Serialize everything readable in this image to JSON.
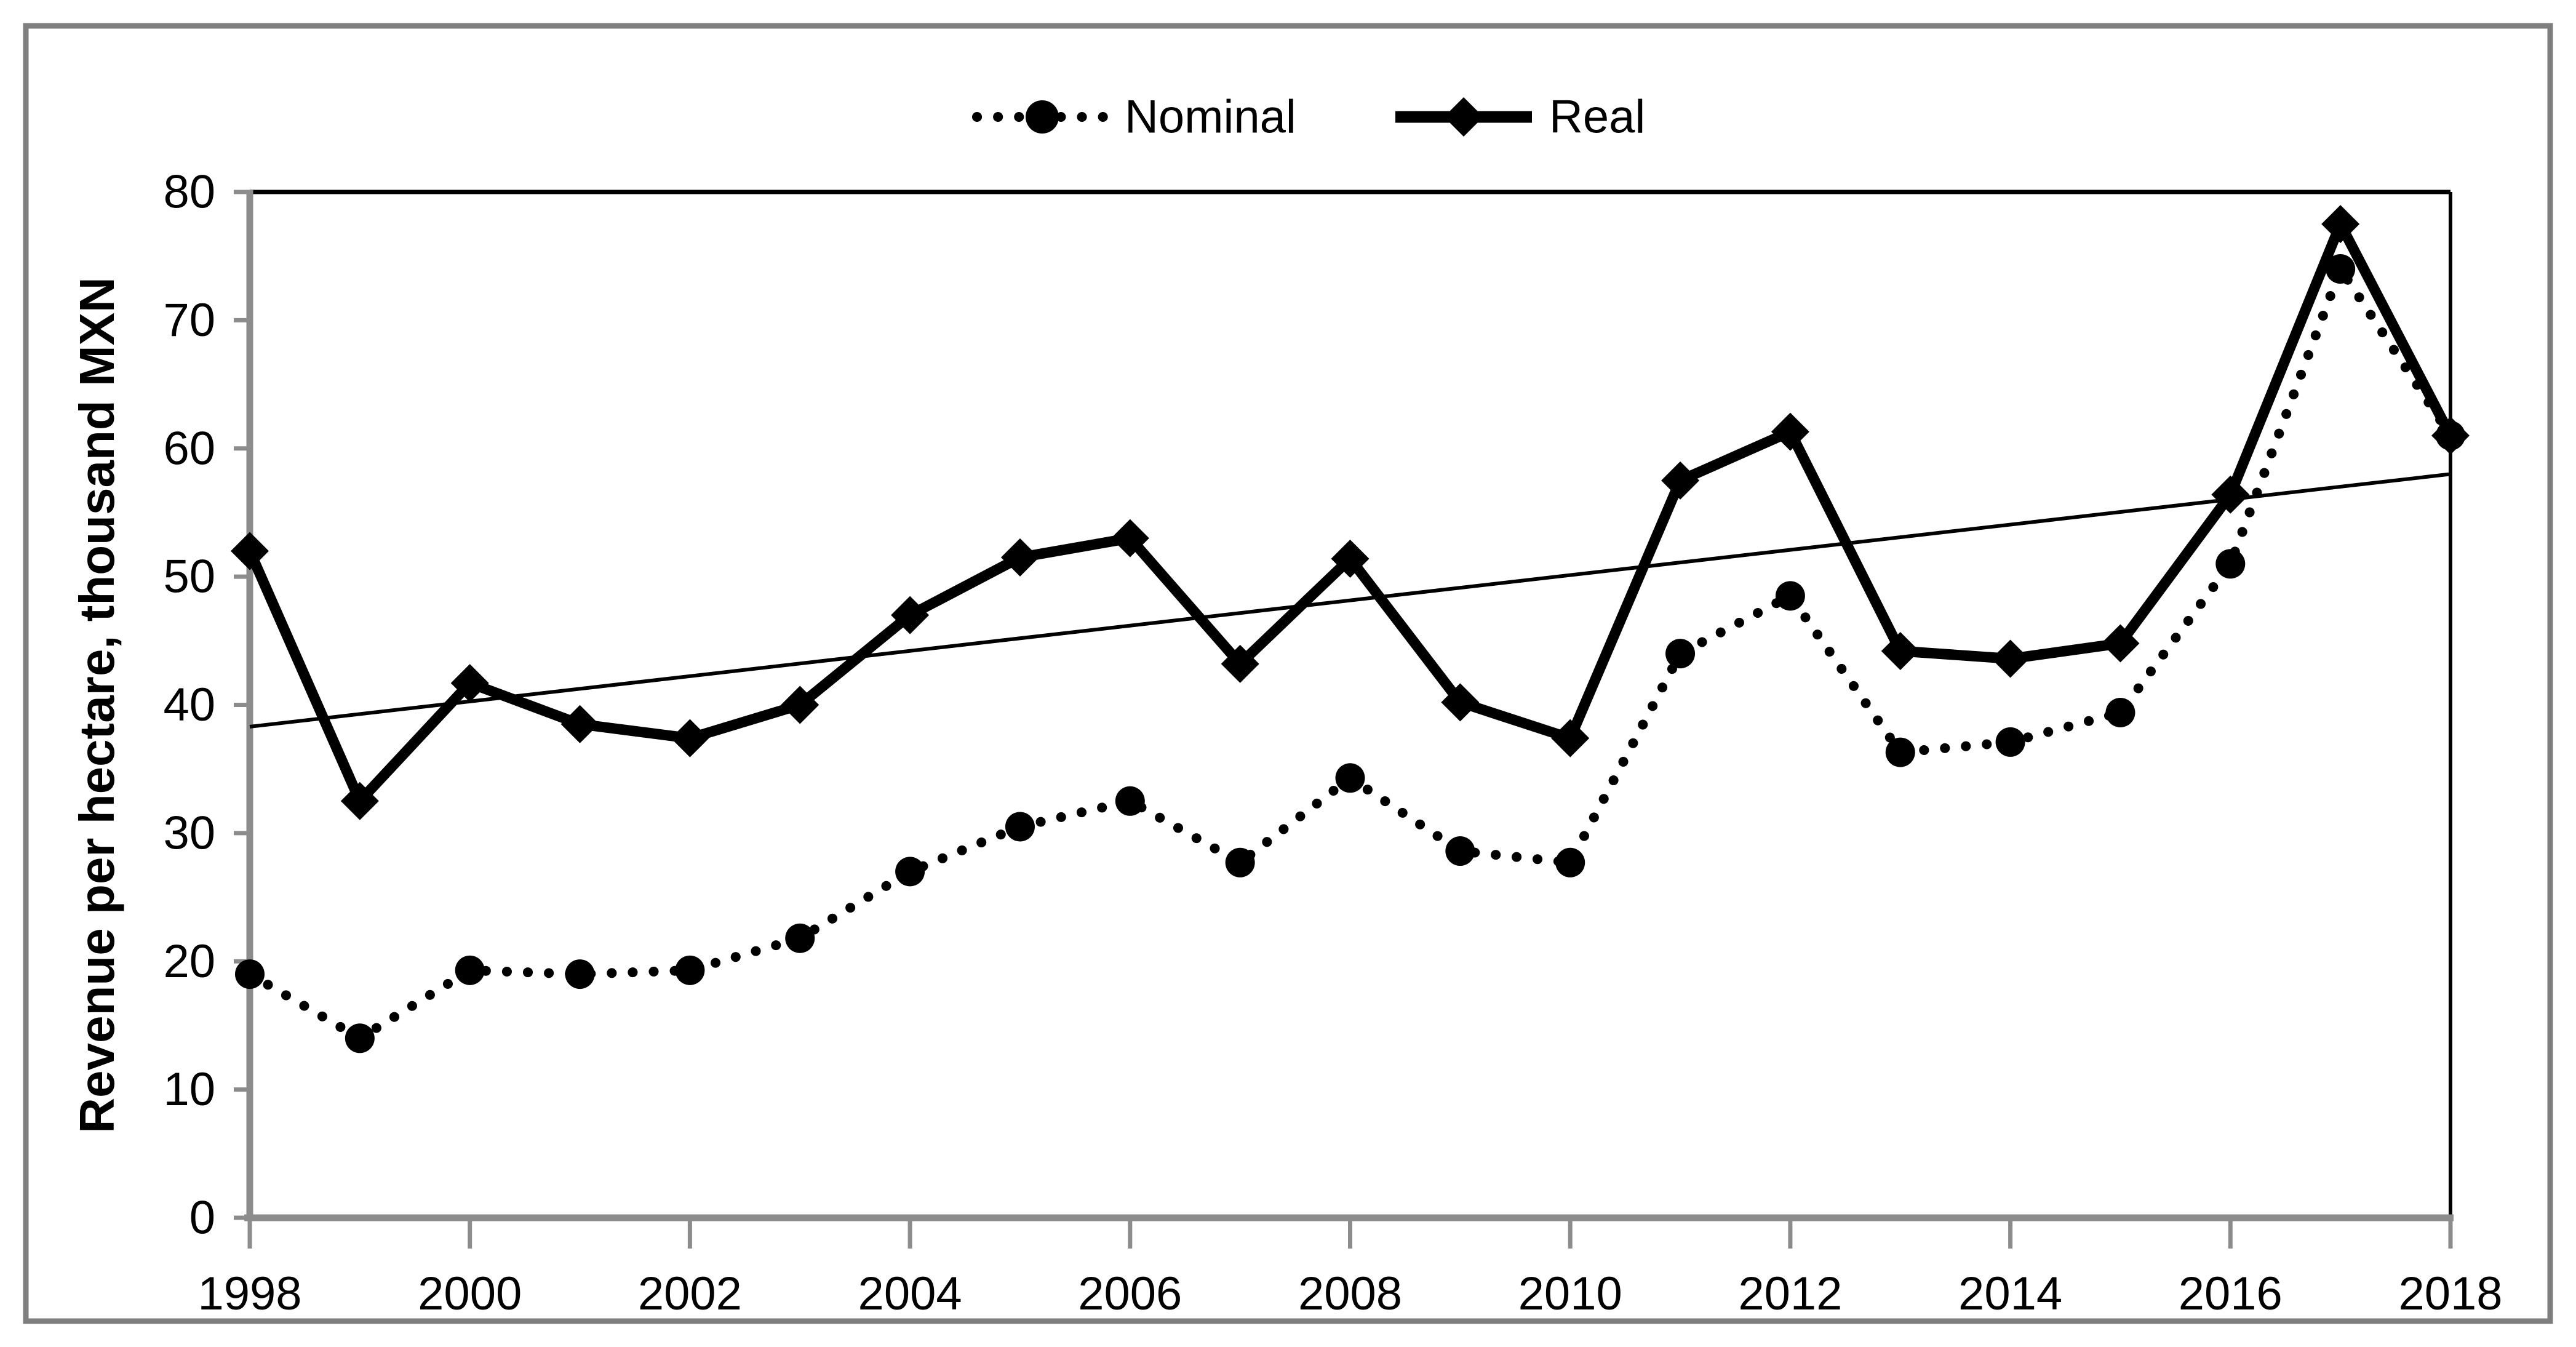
{
  "figure": {
    "background": "#FFFFFF",
    "outer_border_color": "#7F7F7F",
    "axis_color": "#8C8C8C",
    "plot_border_color": "#000000",
    "series_color": "#000000"
  },
  "legend": {
    "items": [
      {
        "label": "Nominal",
        "sample": "dotted-line-with-circle-marker"
      },
      {
        "label": "Real",
        "sample": "solid-line-with-diamond-marker"
      }
    ]
  },
  "chart_data": {
    "type": "line",
    "title": "",
    "xlabel": "",
    "ylabel": "Revenue per hectare, thousand MXN",
    "ylim": [
      0,
      80
    ],
    "xlim": [
      1998,
      2018
    ],
    "grid": false,
    "legend_position": "top-center",
    "y_ticks": [
      0,
      10,
      20,
      30,
      40,
      50,
      60,
      70,
      80
    ],
    "x_ticks": [
      1998,
      2000,
      2002,
      2004,
      2006,
      2008,
      2010,
      2012,
      2014,
      2016,
      2018
    ],
    "x": [
      1998,
      1999,
      2000,
      2001,
      2002,
      2003,
      2004,
      2005,
      2006,
      2007,
      2008,
      2009,
      2010,
      2011,
      2012,
      2013,
      2014,
      2015,
      2016,
      2017,
      2018
    ],
    "series": [
      {
        "name": "Nominal",
        "style": "dotted",
        "marker": "circle",
        "color": "#000000",
        "values": [
          19,
          14,
          19.3,
          19,
          19.3,
          21.8,
          27,
          30.5,
          32.5,
          27.7,
          34.3,
          28.6,
          27.7,
          44,
          48.5,
          36.3,
          37.1,
          39.4,
          51,
          74,
          61
        ]
      },
      {
        "name": "Real",
        "style": "solid-thick",
        "marker": "diamond",
        "color": "#000000",
        "values": [
          52,
          32.5,
          41.7,
          38.5,
          37.4,
          40,
          47,
          51.5,
          53,
          43.2,
          51.4,
          40.2,
          37.4,
          57.5,
          61.3,
          44.2,
          43.6,
          44.8,
          56.4,
          77.5,
          61
        ]
      }
    ],
    "trend_line": {
      "start_year": 1998,
      "start_value": 38.3,
      "end_year": 2018,
      "end_value": 58,
      "color": "#000000"
    }
  }
}
